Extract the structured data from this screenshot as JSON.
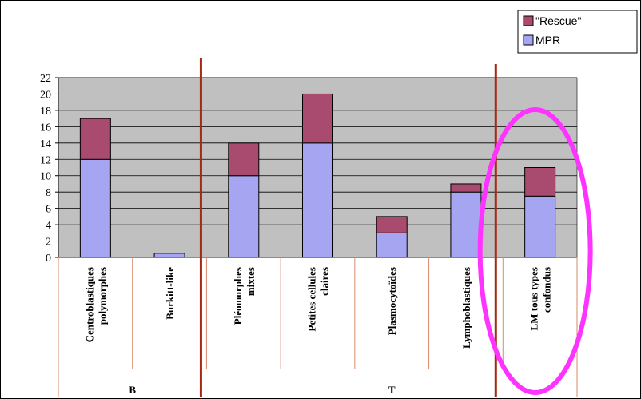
{
  "chart_data": {
    "type": "bar",
    "stacked": true,
    "categories": [
      [
        "Centroblastiques",
        "polymorphes"
      ],
      [
        "Burkitt-like"
      ],
      [
        "Pléomorphes",
        "mixtes"
      ],
      [
        "Petites cellules",
        "claires"
      ],
      [
        "Plasmocytoïdes"
      ],
      [
        "Lymphoblastiques"
      ],
      [
        "LM tous types",
        "confondus"
      ]
    ],
    "groups": [
      {
        "label": "B",
        "categories": [
          0,
          1
        ]
      },
      {
        "label": "T",
        "categories": [
          2,
          3,
          4,
          5,
          6
        ]
      }
    ],
    "series": [
      {
        "name": "MPR",
        "color": "#a5a5f2",
        "values": [
          12,
          0.5,
          10,
          14,
          3,
          8,
          7.5
        ]
      },
      {
        "name": "\"Rescue\"",
        "color": "#a94b6f",
        "values": [
          5,
          0,
          4,
          6,
          2,
          1,
          3.5
        ]
      }
    ],
    "yticks": [
      "0",
      "2",
      "4",
      "6",
      "8",
      "10",
      "12",
      "14",
      "16",
      "18",
      "20",
      "22"
    ],
    "ylim": [
      0,
      22
    ],
    "grid": true,
    "plot_background": "#c0c0c0",
    "separator_color": "#a52a14",
    "highlight_color": "#ff33ff",
    "legend_placement": "top-right"
  }
}
